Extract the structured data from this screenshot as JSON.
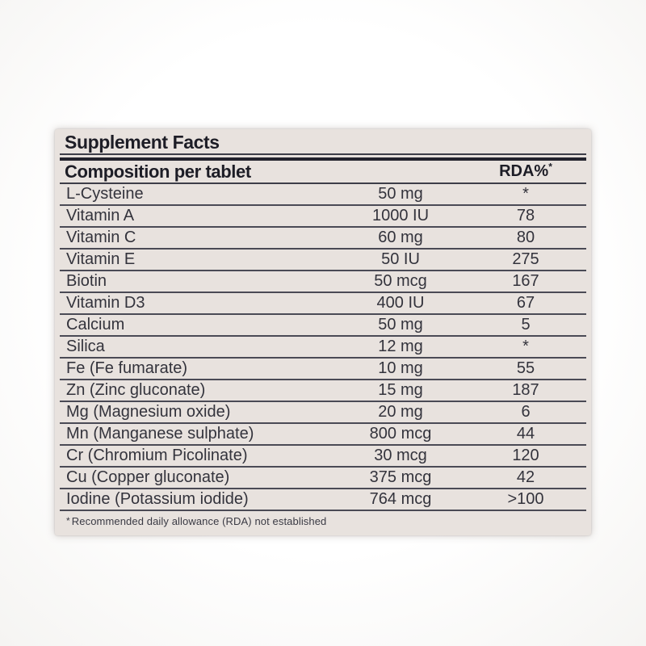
{
  "label": {
    "title": "Supplement Facts",
    "header": {
      "composition": "Composition per tablet",
      "rda": "RDA%",
      "rda_superscript": "*"
    },
    "rows": [
      {
        "name": "L-Cysteine",
        "amount": "50 mg",
        "rda": "*"
      },
      {
        "name": "Vitamin A",
        "amount": "1000 IU",
        "rda": "78"
      },
      {
        "name": "Vitamin C",
        "amount": "60 mg",
        "rda": "80"
      },
      {
        "name": "Vitamin E",
        "amount": "50 IU",
        "rda": "275"
      },
      {
        "name": "Biotin",
        "amount": "50 mcg",
        "rda": "167"
      },
      {
        "name": "Vitamin D3",
        "amount": "400 IU",
        "rda": "67"
      },
      {
        "name": "Calcium",
        "amount": "50 mg",
        "rda": "5"
      },
      {
        "name": "Silica",
        "amount": "12 mg",
        "rda": "*"
      },
      {
        "name": "Fe (Fe fumarate)",
        "amount": "10 mg",
        "rda": "55"
      },
      {
        "name": "Zn (Zinc gluconate)",
        "amount": "15 mg",
        "rda": "187"
      },
      {
        "name": "Mg (Magnesium oxide)",
        "amount": "20 mg",
        "rda": "6"
      },
      {
        "name": "Mn (Manganese sulphate)",
        "amount": "800 mcg",
        "rda": "44"
      },
      {
        "name": "Cr (Chromium Picolinate)",
        "amount": "30 mcg",
        "rda": "120"
      },
      {
        "name": "Cu (Copper gluconate)",
        "amount": "375 mcg",
        "rda": "42"
      },
      {
        "name": "Iodine (Potassium iodide)",
        "amount": "764 mcg",
        "rda": ">100"
      }
    ],
    "footnote": {
      "star": "*",
      "text": "Recommended daily allowance (RDA) not established"
    },
    "colors": {
      "page_background": "#ffffff",
      "label_background": "#e8e2de",
      "text": "#2c2c34",
      "rule": "#3d3d48"
    }
  }
}
